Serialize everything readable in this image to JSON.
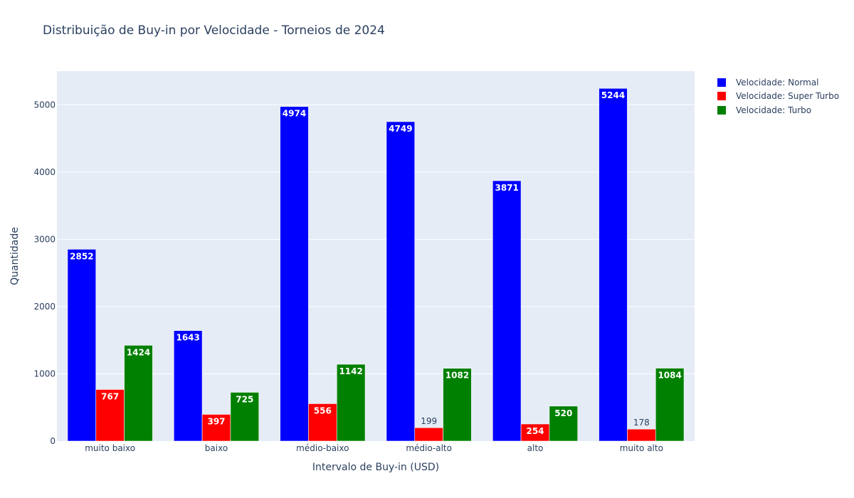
{
  "chart_data": {
    "type": "bar",
    "title": "Distribuição de Buy-in por Velocidade - Torneios de 2024",
    "xlabel": "Intervalo de Buy-in (USD)",
    "ylabel": "Quantidade",
    "categories": [
      "muito baixo",
      "baixo",
      "médio-baixo",
      "médio-alto",
      "alto",
      "muito alto"
    ],
    "series": [
      {
        "name": "Velocidade: Normal",
        "color": "#0000ff",
        "values": [
          2852,
          1643,
          4974,
          4749,
          3871,
          5244
        ]
      },
      {
        "name": "Velocidade: Super Turbo",
        "color": "#ff0000",
        "values": [
          767,
          397,
          556,
          199,
          254,
          178
        ]
      },
      {
        "name": "Velocidade: Turbo",
        "color": "#008000",
        "values": [
          1424,
          725,
          1142,
          1082,
          520,
          1084
        ]
      }
    ],
    "ylim": [
      0,
      5500
    ],
    "yticks": [
      0,
      1000,
      2000,
      3000,
      4000,
      5000
    ],
    "grid": true,
    "legend_position": "top-right",
    "plot_background": "#e5ecf6"
  }
}
